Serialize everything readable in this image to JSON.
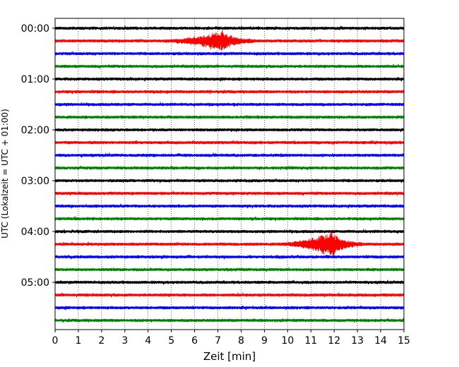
{
  "chart_data": {
    "type": "line",
    "title": "",
    "xlabel": "Zeit  [min]",
    "ylabel": "UTC (Lokalzeit = UTC + 01:00)",
    "xlim": [
      0,
      15
    ],
    "x_ticks": [
      "0",
      "1",
      "2",
      "3",
      "4",
      "5",
      "6",
      "7",
      "8",
      "9",
      "10",
      "11",
      "12",
      "13",
      "14",
      "15"
    ],
    "y_tick_labels": [
      "00:00",
      "01:00",
      "02:00",
      "03:00",
      "04:00",
      "05:00"
    ],
    "grid": "vertical-dotted",
    "trace_interval_min": 15,
    "trace_count": 24,
    "colors": [
      "#000000",
      "#ff0000",
      "#0000ff",
      "#008000"
    ],
    "events": [
      {
        "trace_index": 1,
        "start_min": 4.5,
        "peak_min": 7.2,
        "end_min": 8.6,
        "amplitude": 2.6
      },
      {
        "trace_index": 17,
        "start_min": 9.5,
        "peak_min": 11.9,
        "end_min": 13.2,
        "amplitude": 3.4
      }
    ]
  }
}
